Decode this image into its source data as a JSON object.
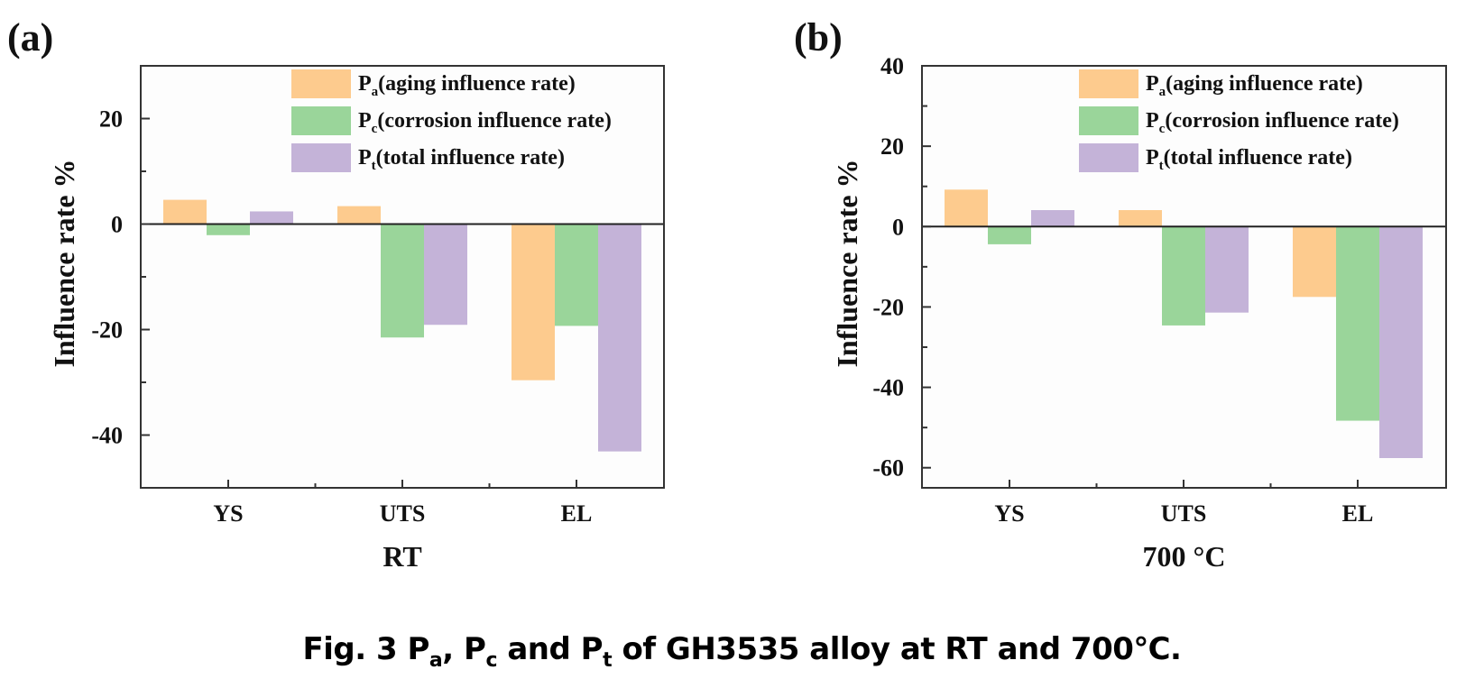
{
  "figure": {
    "caption_parts": {
      "prefix": "Fig. 3 P",
      "sub_a": "a",
      "sep1": ", P",
      "sub_c": "c",
      "sep2": " and P",
      "sub_t": "t",
      "suffix": " of GH3535 alloy at RT and 700℃."
    }
  },
  "chart_data": [
    {
      "panel_label": "(a)",
      "type": "bar",
      "title": "",
      "xlabel": "RT",
      "ylabel": "Influence rate %",
      "categories": [
        "YS",
        "UTS",
        "EL"
      ],
      "ylim": [
        -50,
        30
      ],
      "yticks": [
        -40,
        -20,
        0,
        20
      ],
      "ytick_labels": [
        "-40",
        "-20",
        "0",
        "20"
      ],
      "grid": false,
      "legend_position": "top-right",
      "series": [
        {
          "name": "Pa(aging influence rate)",
          "symbol": "P",
          "sub": "a",
          "label_rest": "(aging influence rate)",
          "color": "#FDCB8E",
          "values": [
            4.6,
            3.4,
            -29.6
          ]
        },
        {
          "name": "Pc(corrosion influence rate)",
          "symbol": "P",
          "sub": "c",
          "label_rest": "(corrosion influence rate)",
          "color": "#9AD59A",
          "values": [
            -2.1,
            -21.5,
            -19.3
          ]
        },
        {
          "name": "Pt(total influence rate)",
          "symbol": "P",
          "sub": "t",
          "label_rest": "(total influence rate)",
          "color": "#C4B3D8",
          "values": [
            2.4,
            -19.1,
            -43.1
          ]
        }
      ]
    },
    {
      "panel_label": "(b)",
      "type": "bar",
      "title": "",
      "xlabel": "700 °C",
      "ylabel": "Influence rate %",
      "categories": [
        "YS",
        "UTS",
        "EL"
      ],
      "ylim": [
        -65,
        40
      ],
      "yticks": [
        -60,
        -40,
        -20,
        0,
        20,
        40
      ],
      "ytick_labels": [
        "-60",
        "-40",
        "-20",
        "0",
        "20",
        "40"
      ],
      "grid": false,
      "legend_position": "top-right",
      "series": [
        {
          "name": "Pa(aging influence rate)",
          "symbol": "P",
          "sub": "a",
          "label_rest": "(aging influence rate)",
          "color": "#FDCB8E",
          "values": [
            9.2,
            4.1,
            -17.5
          ]
        },
        {
          "name": "Pc(corrosion influence rate)",
          "symbol": "P",
          "sub": "c",
          "label_rest": "(corrosion influence rate)",
          "color": "#9AD59A",
          "values": [
            -4.4,
            -24.6,
            -48.3
          ]
        },
        {
          "name": "Pt(total influence rate)",
          "symbol": "P",
          "sub": "t",
          "label_rest": "(total influence rate)",
          "color": "#C4B3D8",
          "values": [
            4.1,
            -21.4,
            -57.6
          ]
        }
      ]
    }
  ]
}
